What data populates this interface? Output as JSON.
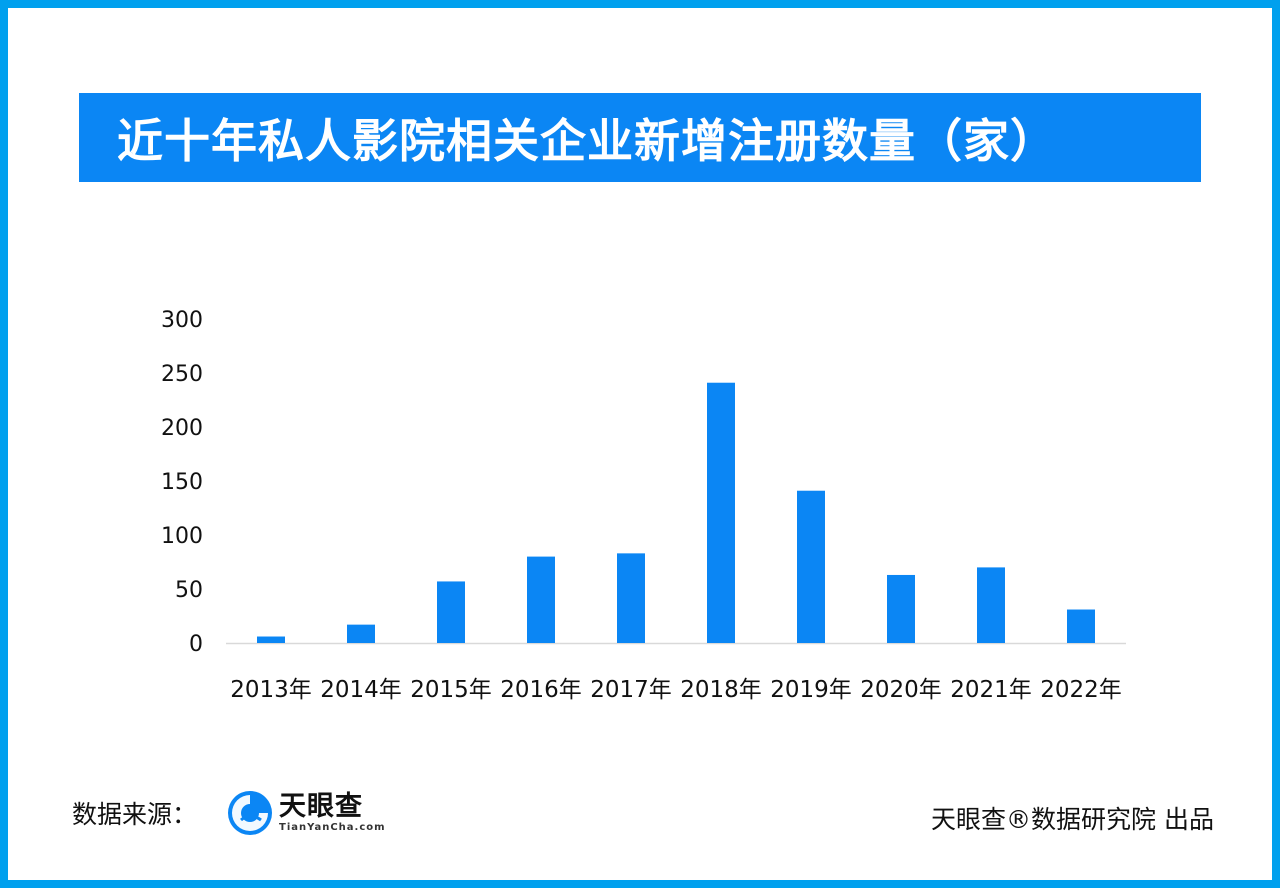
{
  "title": "近十年私人影院相关企业新增注册数量（家）",
  "chart_data": {
    "type": "bar",
    "categories": [
      "2013年",
      "2014年",
      "2015年",
      "2016年",
      "2017年",
      "2018年",
      "2019年",
      "2020年",
      "2021年",
      "2022年"
    ],
    "values": [
      6,
      17,
      57,
      80,
      83,
      241,
      141,
      63,
      70,
      31
    ],
    "ylim": [
      0,
      300
    ],
    "yticks": [
      0,
      50,
      100,
      150,
      200,
      250,
      300
    ],
    "bar_color": "#0b86f4",
    "grid": false
  },
  "footer": {
    "source_label": "数据来源：",
    "logo_name": "天眼查",
    "logo_domain": "TianYanCha.com",
    "credit": "天眼查®数据研究院 出品"
  },
  "colors": {
    "frame": "#00a0ee",
    "title_bg": "#0b86f4",
    "bars": "#0b86f4"
  }
}
